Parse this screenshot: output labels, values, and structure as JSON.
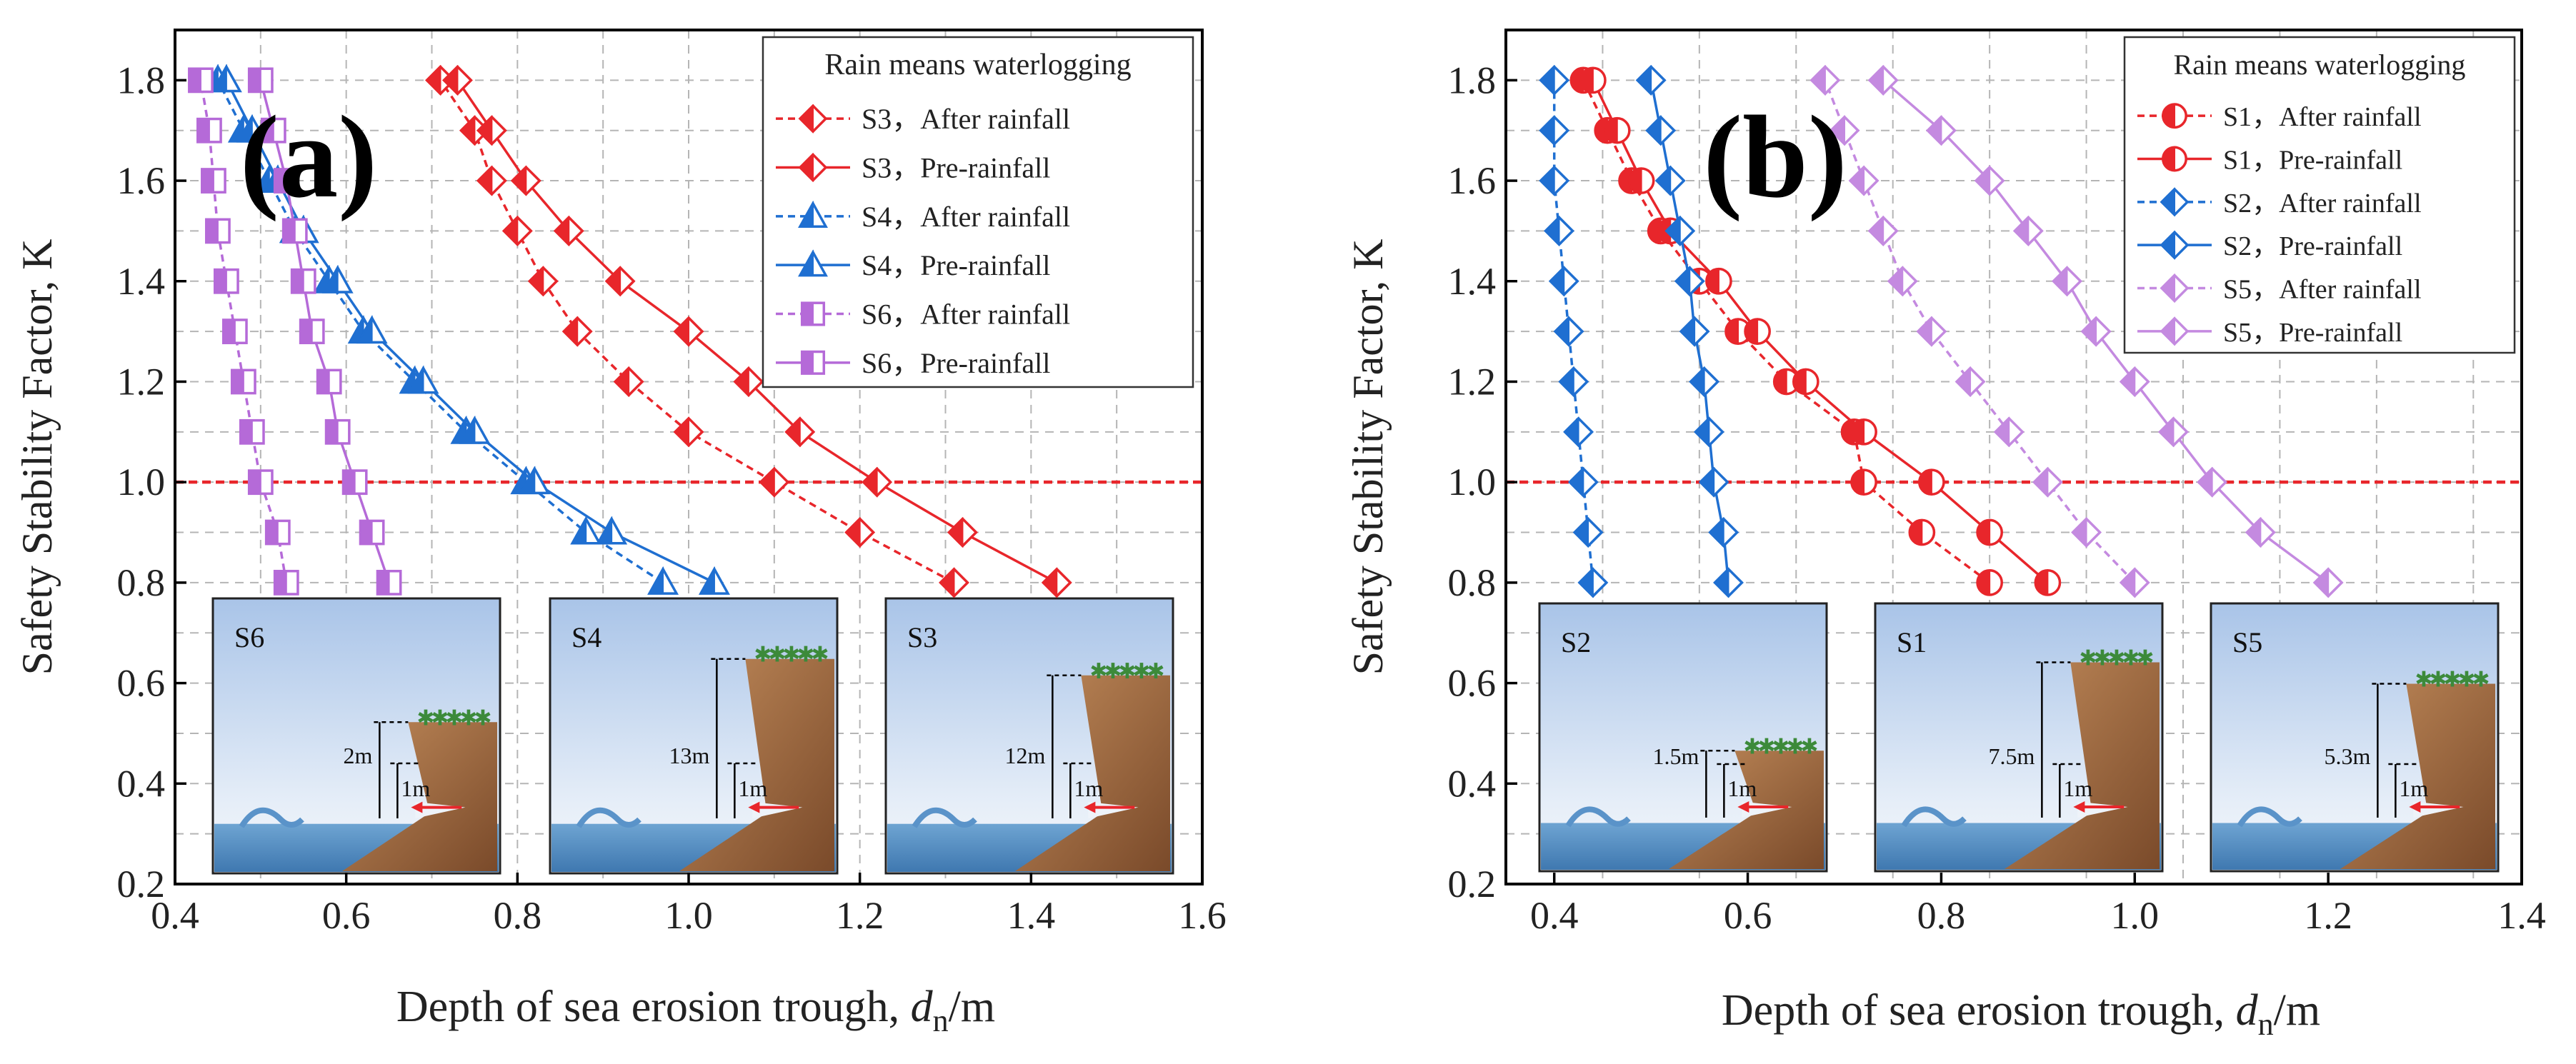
{
  "chart_data": [
    {
      "type": "line",
      "panel": "(a)",
      "xlabel": "Depth of sea erosion trough, ",
      "xlabel_italic": "d",
      "xlabel_sub": "n",
      "xlabel_tail": "/m",
      "ylabel": "Safety Stability Factor, K",
      "xlim": [
        0.4,
        1.6
      ],
      "ylim": [
        0.2,
        1.9
      ],
      "xticks": [
        0.4,
        0.6,
        0.8,
        1.0,
        1.2,
        1.4,
        1.6
      ],
      "xtick_labels": [
        "0.4",
        "0.6",
        "0.8",
        "1.0",
        "1.2",
        "1.4",
        "1.6"
      ],
      "yticks": [
        0.2,
        0.4,
        0.6,
        0.8,
        1.0,
        1.2,
        1.4,
        1.6,
        1.8
      ],
      "ytick_labels": [
        "0.2",
        "0.4",
        "0.6",
        "0.8",
        "1.0",
        "1.2",
        "1.4",
        "1.6",
        "1.8"
      ],
      "reference_line": 1.0,
      "legend_title": "Rain means waterlogging",
      "legend_position": "top-right",
      "series": [
        {
          "name": "S3，After rainfall",
          "color": "#e8262b",
          "dashed": true,
          "marker": "diamond",
          "y": [
            0.8,
            0.9,
            1.0,
            1.1,
            1.2,
            1.3,
            1.4,
            1.5,
            1.6,
            1.7,
            1.8
          ],
          "x": [
            1.31,
            1.2,
            1.1,
            1.0,
            0.93,
            0.87,
            0.83,
            0.8,
            0.77,
            0.75,
            0.71
          ]
        },
        {
          "name": "S3，Pre-rainfall",
          "color": "#e8262b",
          "dashed": false,
          "marker": "diamond",
          "y": [
            0.8,
            0.9,
            1.0,
            1.1,
            1.2,
            1.3,
            1.4,
            1.5,
            1.6,
            1.7,
            1.8
          ],
          "x": [
            1.43,
            1.32,
            1.22,
            1.13,
            1.07,
            1.0,
            0.92,
            0.86,
            0.81,
            0.77,
            0.73
          ]
        },
        {
          "name": "S4，After rainfall",
          "color": "#1f6fd1",
          "dashed": true,
          "marker": "triangle",
          "y": [
            0.8,
            0.9,
            1.0,
            1.1,
            1.2,
            1.3,
            1.4,
            1.5,
            1.6,
            1.7,
            1.8
          ],
          "x": [
            0.97,
            0.88,
            0.81,
            0.74,
            0.68,
            0.62,
            0.58,
            0.54,
            0.51,
            0.48,
            0.45
          ]
        },
        {
          "name": "S4，Pre-rainfall",
          "color": "#1f6fd1",
          "dashed": false,
          "marker": "triangle",
          "y": [
            0.8,
            0.9,
            1.0,
            1.1,
            1.2,
            1.3,
            1.4,
            1.5,
            1.6,
            1.7,
            1.8
          ],
          "x": [
            1.03,
            0.91,
            0.82,
            0.75,
            0.69,
            0.63,
            0.59,
            0.55,
            0.52,
            0.49,
            0.46
          ]
        },
        {
          "name": "S6，After rainfall",
          "color": "#b56ad8",
          "dashed": true,
          "marker": "square",
          "y": [
            0.8,
            0.9,
            1.0,
            1.1,
            1.2,
            1.3,
            1.4,
            1.5,
            1.6,
            1.7,
            1.8
          ],
          "x": [
            0.53,
            0.52,
            0.5,
            0.49,
            0.48,
            0.47,
            0.46,
            0.45,
            0.445,
            0.44,
            0.43
          ]
        },
        {
          "name": "S6，Pre-rainfall",
          "color": "#b56ad8",
          "dashed": false,
          "marker": "square",
          "y": [
            0.8,
            0.9,
            1.0,
            1.1,
            1.2,
            1.3,
            1.4,
            1.5,
            1.6,
            1.7,
            1.8
          ],
          "x": [
            0.65,
            0.63,
            0.61,
            0.59,
            0.58,
            0.56,
            0.55,
            0.54,
            0.53,
            0.515,
            0.5
          ]
        }
      ],
      "insets": [
        {
          "label": "S6",
          "dims": [
            "2m",
            "1m"
          ]
        },
        {
          "label": "S4",
          "dims": [
            "13m",
            "1m"
          ]
        },
        {
          "label": "S3",
          "dims": [
            "12m",
            "1m"
          ]
        }
      ]
    },
    {
      "type": "line",
      "panel": "(b)",
      "xlabel": "Depth of sea erosion trough, ",
      "xlabel_italic": "d",
      "xlabel_sub": "n",
      "xlabel_tail": "/m",
      "ylabel": "Safety Stability Factor, K",
      "xlim": [
        0.35,
        1.4
      ],
      "ylim": [
        0.2,
        1.9
      ],
      "xticks": [
        0.4,
        0.6,
        0.8,
        1.0,
        1.2,
        1.4
      ],
      "xtick_labels": [
        "0.4",
        "0.6",
        "0.8",
        "1.0",
        "1.2",
        "1.4"
      ],
      "yticks": [
        0.2,
        0.4,
        0.6,
        0.8,
        1.0,
        1.2,
        1.4,
        1.6,
        1.8
      ],
      "ytick_labels": [
        "0.2",
        "0.4",
        "0.6",
        "0.8",
        "1.0",
        "1.2",
        "1.4",
        "1.6",
        "1.8"
      ],
      "reference_line": 1.0,
      "legend_title": "Rain means waterlogging",
      "legend_position": "top-right",
      "series": [
        {
          "name": "S1，After rainfall",
          "color": "#e8262b",
          "dashed": true,
          "marker": "circle",
          "y": [
            0.8,
            0.9,
            1.0,
            1.1,
            1.2,
            1.3,
            1.4,
            1.5,
            1.6,
            1.7,
            1.8
          ],
          "x": [
            0.85,
            0.78,
            0.72,
            0.71,
            0.64,
            0.59,
            0.55,
            0.51,
            0.48,
            0.455,
            0.43
          ]
        },
        {
          "name": "S1，Pre-rainfall",
          "color": "#e8262b",
          "dashed": false,
          "marker": "circle",
          "y": [
            0.8,
            0.9,
            1.0,
            1.1,
            1.2,
            1.3,
            1.4,
            1.5,
            1.6,
            1.7,
            1.8
          ],
          "x": [
            0.91,
            0.85,
            0.79,
            0.72,
            0.66,
            0.61,
            0.57,
            0.52,
            0.49,
            0.465,
            0.44
          ]
        },
        {
          "name": "S2，After rainfall",
          "color": "#1f6fd1",
          "dashed": true,
          "marker": "diamond",
          "y": [
            0.8,
            0.9,
            1.0,
            1.1,
            1.2,
            1.3,
            1.4,
            1.5,
            1.6,
            1.7,
            1.8
          ],
          "x": [
            0.44,
            0.435,
            0.43,
            0.425,
            0.42,
            0.415,
            0.41,
            0.405,
            0.4,
            0.4,
            0.4
          ]
        },
        {
          "name": "S2，Pre-rainfall",
          "color": "#1f6fd1",
          "dashed": false,
          "marker": "diamond",
          "y": [
            0.8,
            0.9,
            1.0,
            1.1,
            1.2,
            1.3,
            1.4,
            1.5,
            1.6,
            1.7,
            1.8
          ],
          "x": [
            0.58,
            0.575,
            0.565,
            0.56,
            0.555,
            0.545,
            0.54,
            0.53,
            0.52,
            0.51,
            0.5
          ]
        },
        {
          "name": "S5，After rainfall",
          "color": "#c48ae0",
          "dashed": true,
          "marker": "diamond",
          "y": [
            0.8,
            0.9,
            1.0,
            1.1,
            1.2,
            1.3,
            1.4,
            1.5,
            1.6,
            1.7,
            1.8
          ],
          "x": [
            1.0,
            0.95,
            0.91,
            0.87,
            0.83,
            0.79,
            0.76,
            0.74,
            0.72,
            0.7,
            0.68
          ]
        },
        {
          "name": "S5，Pre-rainfall",
          "color": "#c48ae0",
          "dashed": false,
          "marker": "diamond",
          "y": [
            0.8,
            0.9,
            1.0,
            1.1,
            1.2,
            1.3,
            1.4,
            1.5,
            1.6,
            1.7,
            1.8
          ],
          "x": [
            1.2,
            1.13,
            1.08,
            1.04,
            1.0,
            0.96,
            0.93,
            0.89,
            0.85,
            0.8,
            0.74
          ]
        }
      ],
      "insets": [
        {
          "label": "S2",
          "dims": [
            "1.5m",
            "1m"
          ]
        },
        {
          "label": "S1",
          "dims": [
            "7.5m",
            "1m"
          ]
        },
        {
          "label": "S5",
          "dims": [
            "5.3m",
            "1m"
          ]
        }
      ]
    }
  ]
}
